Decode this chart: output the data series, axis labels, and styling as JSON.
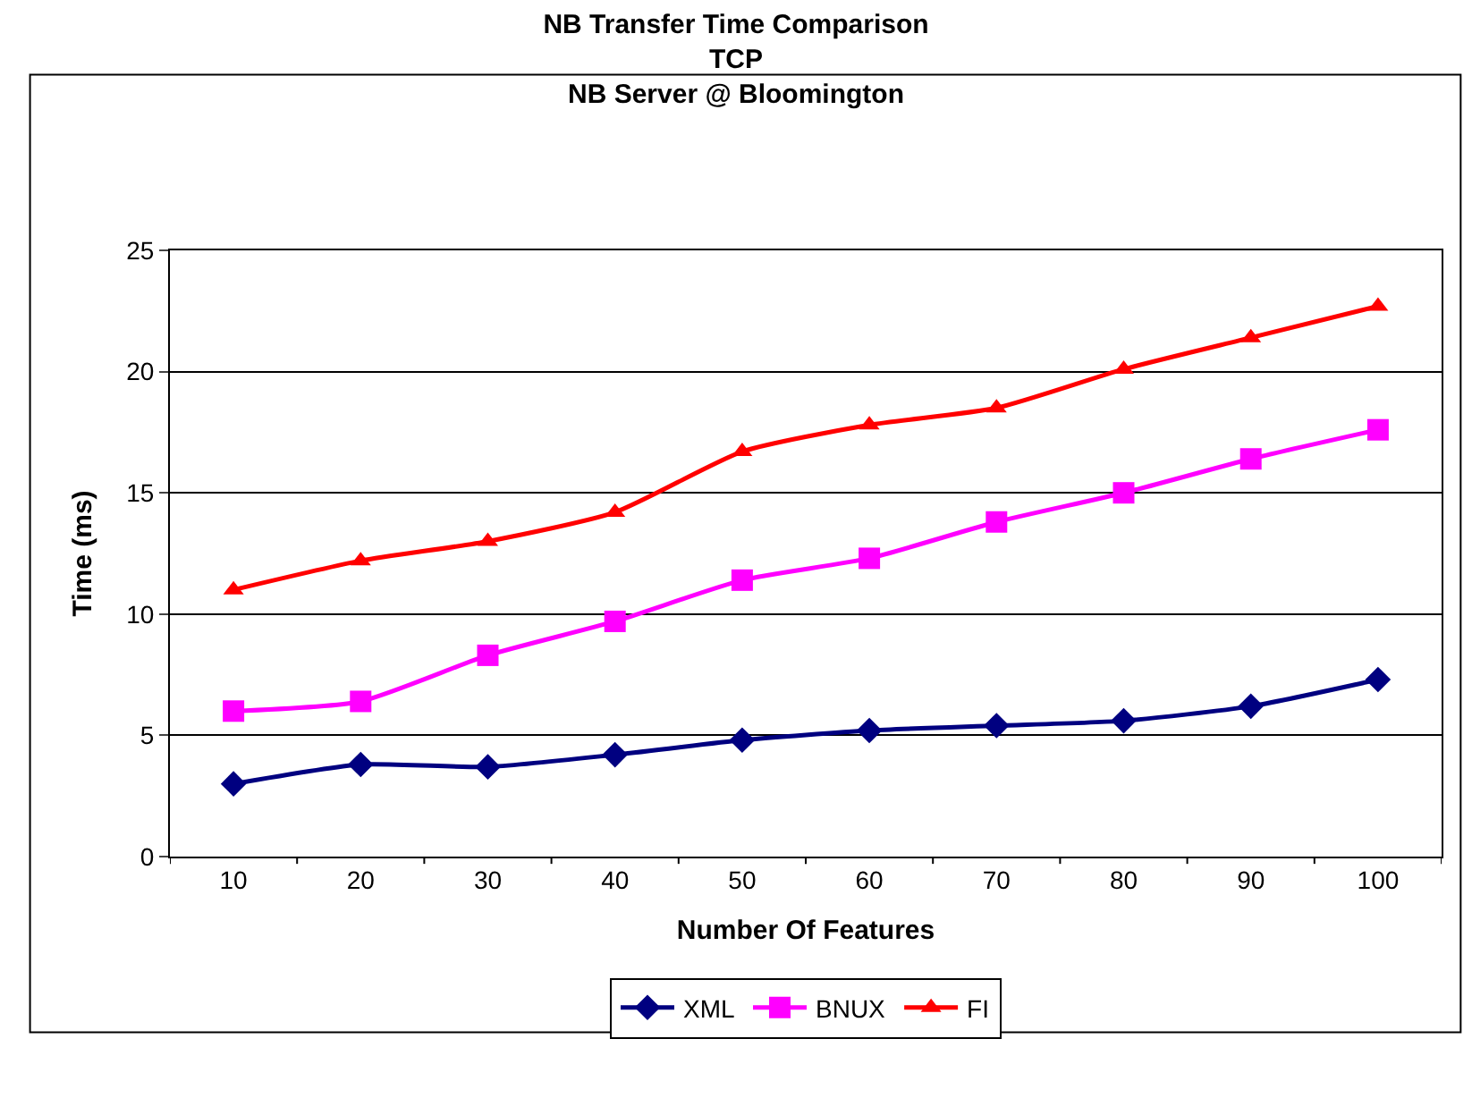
{
  "chart_data": {
    "type": "line",
    "title": "NB Transfer Time Comparison\nTCP\nNB Server @ Bloomington",
    "xlabel": "Number Of Features",
    "ylabel": "Time (ms)",
    "categories": [
      "10",
      "20",
      "30",
      "40",
      "50",
      "60",
      "70",
      "80",
      "90",
      "100"
    ],
    "series": [
      {
        "name": "XML",
        "color": "#000080",
        "marker": "diamond",
        "values": [
          3.0,
          3.8,
          3.7,
          4.2,
          4.8,
          5.2,
          5.4,
          5.6,
          6.2,
          7.3
        ]
      },
      {
        "name": "BNUX",
        "color": "#ff00ff",
        "marker": "square",
        "values": [
          6.0,
          6.4,
          8.3,
          9.7,
          11.4,
          12.3,
          13.8,
          15.0,
          16.4,
          17.6
        ]
      },
      {
        "name": "FI",
        "color": "#ff0000",
        "marker": "triangle",
        "values": [
          11.0,
          12.2,
          13.0,
          14.2,
          16.7,
          17.8,
          18.5,
          20.1,
          21.4,
          22.7
        ]
      }
    ],
    "ylim": [
      0,
      25
    ],
    "yticks": [
      0,
      5,
      10,
      15,
      20,
      25
    ],
    "grid": "y",
    "legend": "bottom"
  }
}
